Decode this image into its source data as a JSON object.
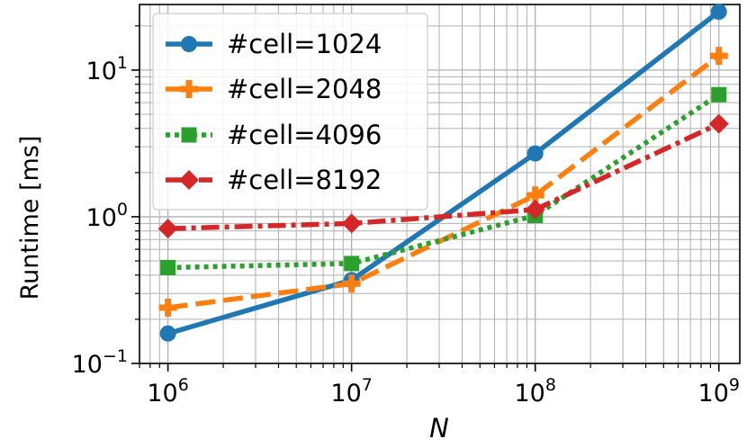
{
  "chart_data": {
    "type": "line",
    "title": "",
    "xlabel": "N",
    "ylabel": "Runtime [ms]",
    "xscale": "log",
    "yscale": "log",
    "xlim": [
      700000,
      1300000000
    ],
    "ylim": [
      0.1,
      28
    ],
    "grid": true,
    "legend_position": "top-left",
    "x": [
      1000000,
      10000000,
      100000000,
      1000000000
    ],
    "x_ticks": [
      {
        "value": 1000000,
        "base": "10",
        "exp": "6"
      },
      {
        "value": 10000000,
        "base": "10",
        "exp": "7"
      },
      {
        "value": 100000000,
        "base": "10",
        "exp": "8"
      },
      {
        "value": 1000000000,
        "base": "10",
        "exp": "9"
      }
    ],
    "y_ticks": [
      {
        "value": 0.1,
        "base": "10",
        "exp": "−1"
      },
      {
        "value": 1,
        "base": "10",
        "exp": "0"
      },
      {
        "value": 10,
        "base": "10",
        "exp": "1"
      }
    ],
    "series": [
      {
        "name": "#cell=1024",
        "key": "cell-1024",
        "color": "#1f77b4",
        "dash": "",
        "marker": "circle",
        "values": [
          0.16,
          0.37,
          2.7,
          25
        ]
      },
      {
        "name": "#cell=2048",
        "key": "cell-2048",
        "color": "#ff7f0e",
        "dash": "22,9",
        "marker": "plus",
        "values": [
          0.24,
          0.35,
          1.4,
          12.5
        ]
      },
      {
        "name": "#cell=4096",
        "key": "cell-4096",
        "color": "#2ca02c",
        "dash": "5,5",
        "marker": "square",
        "values": [
          0.45,
          0.48,
          1.02,
          6.8
        ]
      },
      {
        "name": "#cell=8192",
        "key": "cell-8192",
        "color": "#d62728",
        "dash": "20,6,5,6",
        "marker": "diamond",
        "values": [
          0.83,
          0.9,
          1.12,
          4.3
        ]
      }
    ]
  }
}
